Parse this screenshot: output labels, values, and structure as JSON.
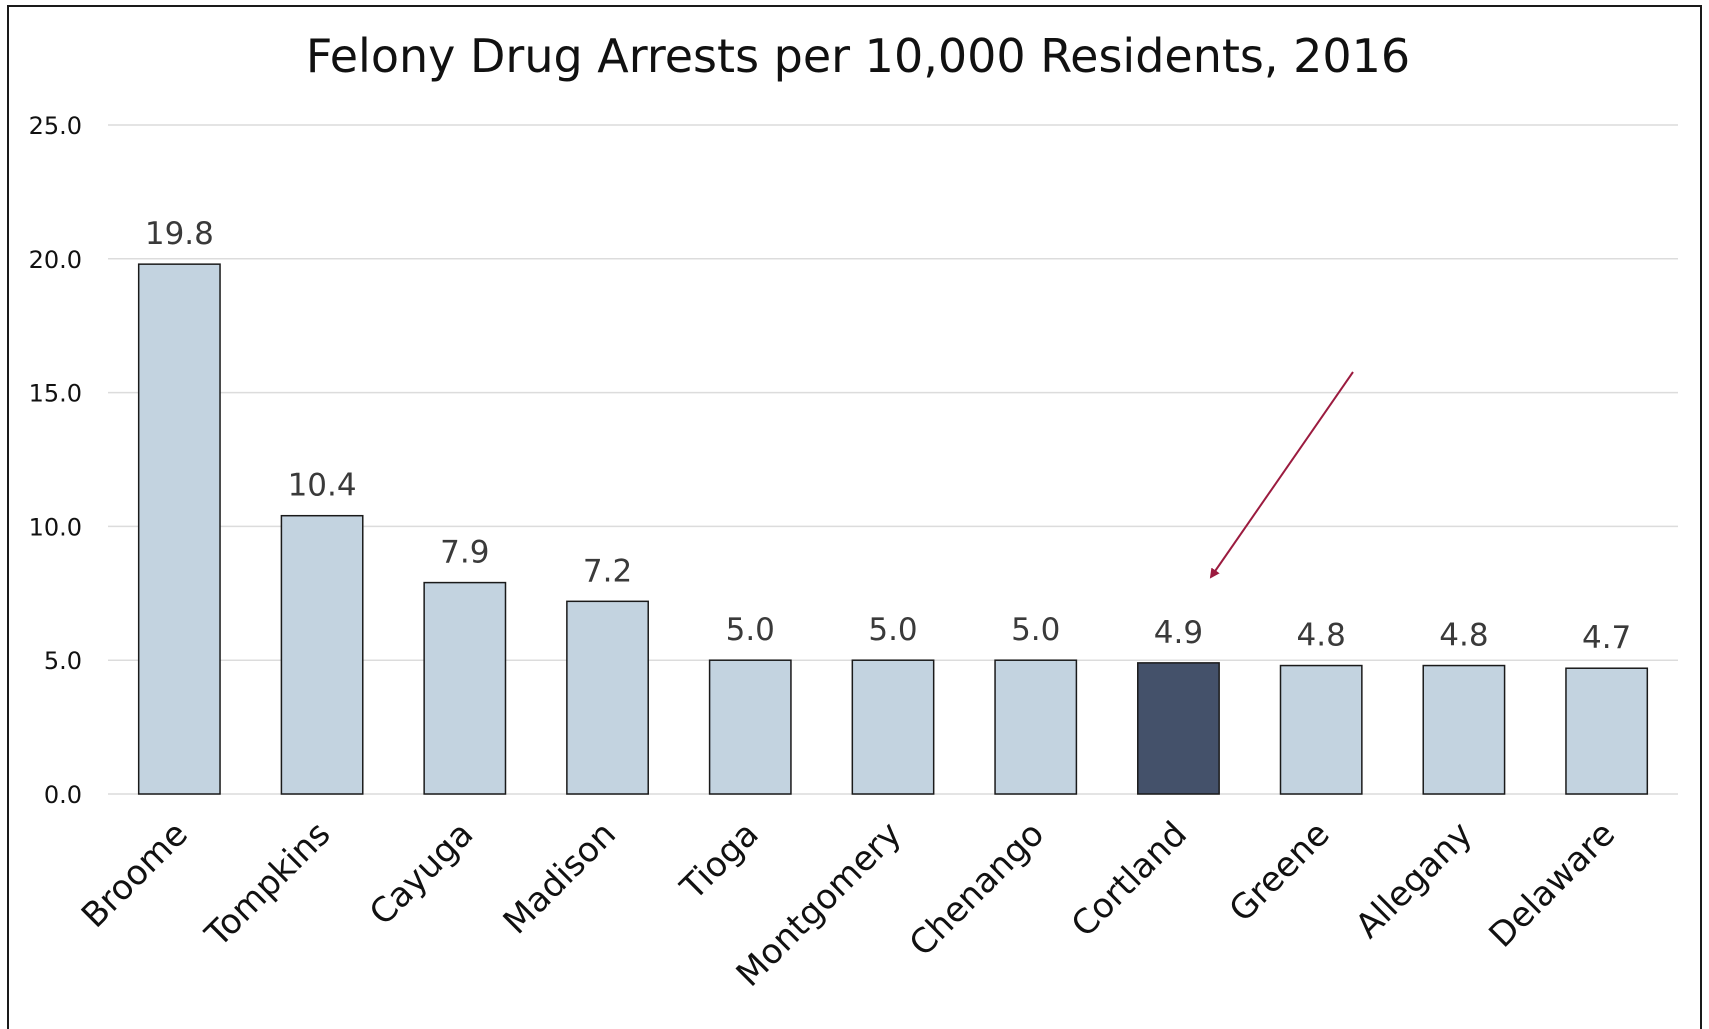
{
  "chart_data": {
    "type": "bar",
    "title": "Felony Drug Arrests per 10,000 Residents, 2016",
    "xlabel": "",
    "ylabel": "",
    "categories": [
      "Broome",
      "Tompkins",
      "Cayuga",
      "Madison",
      "Tioga",
      "Montgomery",
      "Chenango",
      "Cortland",
      "Greene",
      "Allegany",
      "Delaware"
    ],
    "values": [
      19.8,
      10.4,
      7.9,
      7.2,
      5.0,
      5.0,
      5.0,
      4.9,
      4.8,
      4.8,
      4.7
    ],
    "data_labels": [
      "19.8",
      "10.4",
      "7.9",
      "7.2",
      "5.0",
      "5.0",
      "5.0",
      "4.9",
      "4.8",
      "4.8",
      "4.7"
    ],
    "ylim": [
      0,
      25
    ],
    "yticks": [
      0,
      5,
      10,
      15,
      20,
      25
    ],
    "ytick_labels": [
      "0.0",
      "5.0",
      "10.0",
      "15.0",
      "20.0",
      "25.0"
    ],
    "grid": true,
    "legend": "none",
    "highlight_category": "Cortland",
    "annotation": "arrow pointing to Cortland bar",
    "colors": {
      "bar": "#c3d3e0",
      "highlight_bar": "#44516a",
      "bar_outline": "#1a1a1a",
      "gridline": "#dcdcdc",
      "arrow": "#9b1b3f",
      "frame": "#1a1a1a"
    }
  }
}
